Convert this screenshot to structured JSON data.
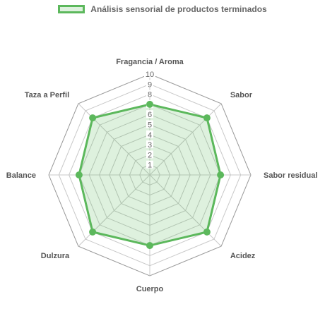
{
  "chart_data": {
    "type": "radar",
    "title": "",
    "categories": [
      "Fragancia / Aroma",
      "Sabor",
      "Sabor residual",
      "Acidez",
      "Cuerpo",
      "Dulzura",
      "Balance",
      "Taza a Perfil"
    ],
    "series": [
      {
        "name": "Análisis sensorial de productos terminados",
        "values": [
          7,
          8,
          7,
          8,
          7,
          8,
          7,
          8
        ]
      }
    ],
    "scale": {
      "min": 0,
      "max": 10,
      "ticks": [
        1,
        2,
        3,
        4,
        5,
        6,
        7,
        8,
        9,
        10
      ]
    },
    "legend_position": "top",
    "colors": {
      "series": "#5cb85c",
      "fill": "rgba(92,184,92,0.2)",
      "grid_outer": "#999999",
      "grid_inner": "#c8c8c8",
      "label": "#555555",
      "tick": "#666666"
    }
  }
}
